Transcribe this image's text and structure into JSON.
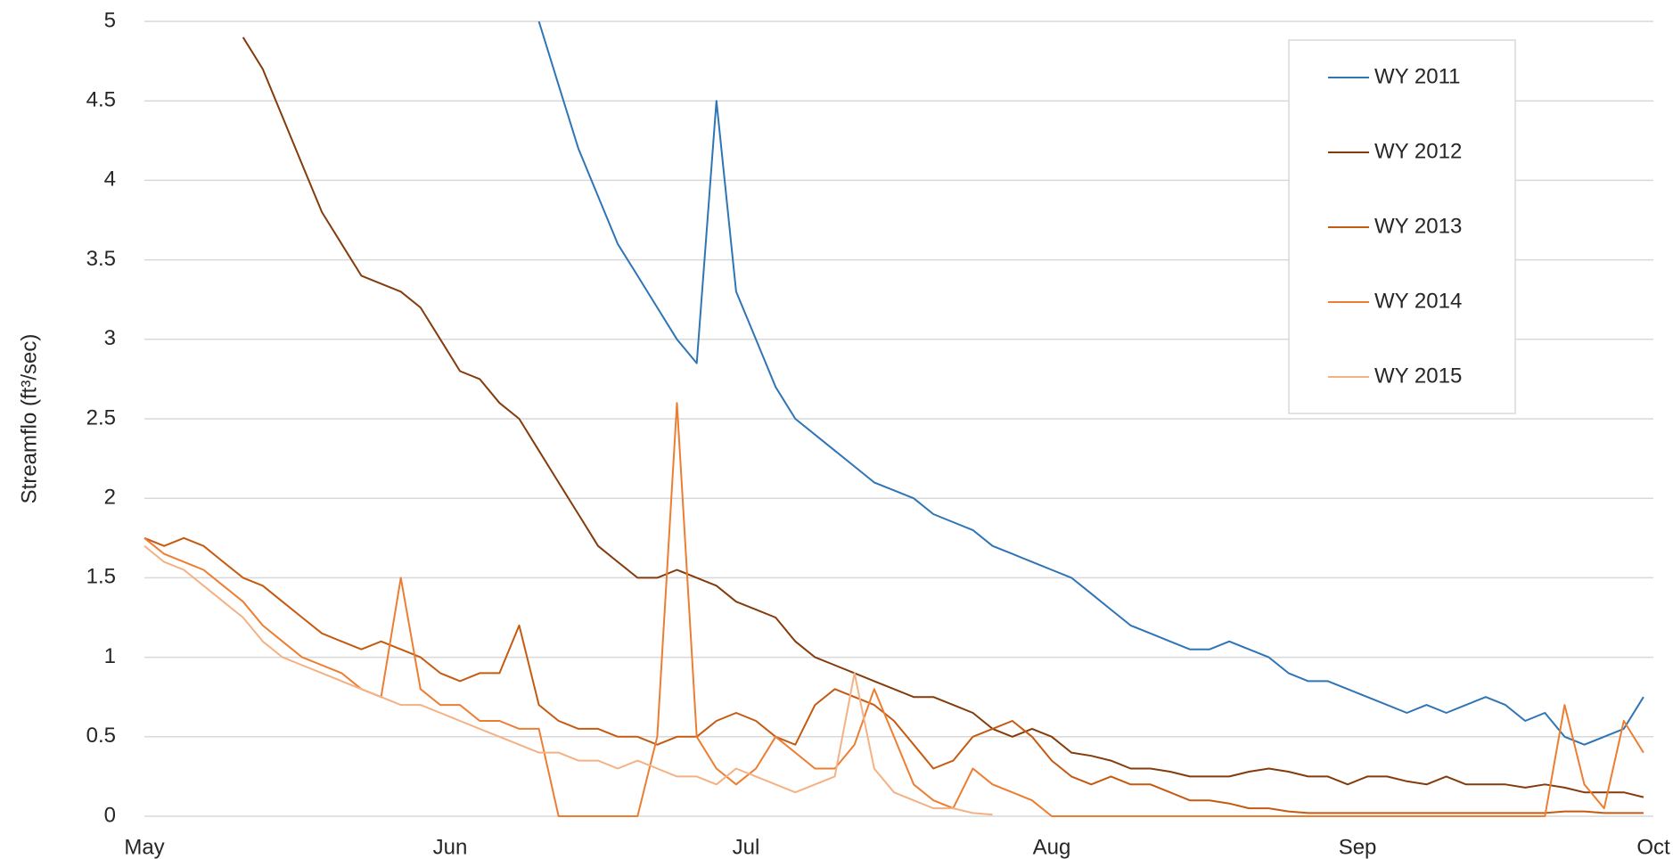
{
  "chart_data": {
    "type": "line",
    "y_label": "Streamflo (ft³/sec)",
    "x": [
      0,
      2,
      4,
      6,
      8,
      10,
      12,
      14,
      16,
      18,
      20,
      22,
      24,
      26,
      28,
      30,
      32,
      34,
      36,
      38,
      40,
      42,
      44,
      46,
      48,
      50,
      52,
      54,
      56,
      58,
      60,
      62,
      64,
      66,
      68,
      70,
      72,
      74,
      76,
      78,
      80,
      82,
      84,
      86,
      88,
      90,
      92,
      94,
      96,
      98,
      100,
      102,
      104,
      106,
      108,
      110,
      112,
      114,
      116,
      118,
      120,
      122,
      124,
      126,
      128,
      130,
      132,
      134,
      136,
      138,
      140,
      142,
      144,
      146,
      148,
      150,
      152
    ],
    "xlim": [
      0,
      153
    ],
    "xticks": [
      {
        "value": 0,
        "label": "May"
      },
      {
        "value": 31,
        "label": "Jun"
      },
      {
        "value": 61,
        "label": "Jul"
      },
      {
        "value": 92,
        "label": "Aug"
      },
      {
        "value": 123,
        "label": "Sep"
      },
      {
        "value": 153,
        "label": "Oct"
      }
    ],
    "ylim": [
      0,
      5
    ],
    "yticks": [
      0,
      0.5,
      1,
      1.5,
      2,
      2.5,
      3,
      3.5,
      4,
      4.5,
      5
    ],
    "grid": true,
    "legend": "top-right",
    "series": [
      {
        "name": "WY 2011",
        "color": "#2e75b6",
        "values": [
          null,
          null,
          null,
          null,
          null,
          null,
          null,
          null,
          null,
          null,
          null,
          null,
          null,
          null,
          null,
          null,
          null,
          null,
          null,
          null,
          5.0,
          4.6,
          4.2,
          3.9,
          3.6,
          3.4,
          3.2,
          3.0,
          2.85,
          4.5,
          3.3,
          3.0,
          2.7,
          2.5,
          2.4,
          2.3,
          2.2,
          2.1,
          2.05,
          2.0,
          1.9,
          1.85,
          1.8,
          1.7,
          1.65,
          1.6,
          1.55,
          1.5,
          1.4,
          1.3,
          1.2,
          1.15,
          1.1,
          1.05,
          1.05,
          1.1,
          1.05,
          1.0,
          0.9,
          0.85,
          0.85,
          0.8,
          0.75,
          0.7,
          0.65,
          0.7,
          0.65,
          0.7,
          0.75,
          0.7,
          0.6,
          0.65,
          0.5,
          0.45,
          0.5,
          0.55,
          0.75
        ]
      },
      {
        "name": "WY 2012",
        "color": "#843c0c",
        "values": [
          null,
          null,
          null,
          null,
          null,
          4.9,
          4.7,
          4.4,
          4.1,
          3.8,
          3.6,
          3.4,
          3.35,
          3.3,
          3.2,
          3.0,
          2.8,
          2.75,
          2.6,
          2.5,
          2.3,
          2.1,
          1.9,
          1.7,
          1.6,
          1.5,
          1.5,
          1.55,
          1.5,
          1.45,
          1.35,
          1.3,
          1.25,
          1.1,
          1.0,
          0.95,
          0.9,
          0.85,
          0.8,
          0.75,
          0.75,
          0.7,
          0.65,
          0.55,
          0.5,
          0.55,
          0.5,
          0.4,
          0.38,
          0.35,
          0.3,
          0.3,
          0.28,
          0.25,
          0.25,
          0.25,
          0.28,
          0.3,
          0.28,
          0.25,
          0.25,
          0.2,
          0.25,
          0.25,
          0.22,
          0.2,
          0.25,
          0.2,
          0.2,
          0.2,
          0.18,
          0.2,
          0.18,
          0.15,
          0.15,
          0.15,
          0.12
        ]
      },
      {
        "name": "WY 2013",
        "color": "#c55a11",
        "values": [
          1.75,
          1.7,
          1.75,
          1.7,
          1.6,
          1.5,
          1.45,
          1.35,
          1.25,
          1.15,
          1.1,
          1.05,
          1.1,
          1.05,
          1.0,
          0.9,
          0.85,
          0.9,
          0.9,
          1.2,
          0.7,
          0.6,
          0.55,
          0.55,
          0.5,
          0.5,
          0.45,
          0.5,
          0.5,
          0.6,
          0.65,
          0.6,
          0.5,
          0.45,
          0.7,
          0.8,
          0.75,
          0.7,
          0.6,
          0.45,
          0.3,
          0.35,
          0.5,
          0.55,
          0.6,
          0.5,
          0.35,
          0.25,
          0.2,
          0.25,
          0.2,
          0.2,
          0.15,
          0.1,
          0.1,
          0.08,
          0.05,
          0.05,
          0.03,
          0.02,
          0.02,
          0.02,
          0.02,
          0.02,
          0.02,
          0.02,
          0.02,
          0.02,
          0.02,
          0.02,
          0.02,
          0.02,
          0.03,
          0.03,
          0.02,
          0.02,
          0.02
        ]
      },
      {
        "name": "WY 2014",
        "color": "#ed7d31",
        "values": [
          1.75,
          1.65,
          1.6,
          1.55,
          1.45,
          1.35,
          1.2,
          1.1,
          1.0,
          0.95,
          0.9,
          0.8,
          0.75,
          1.5,
          0.8,
          0.7,
          0.7,
          0.6,
          0.6,
          0.55,
          0.55,
          0,
          0,
          0,
          0,
          0,
          0.5,
          2.6,
          0.5,
          0.3,
          0.2,
          0.3,
          0.5,
          0.4,
          0.3,
          0.3,
          0.45,
          0.8,
          0.5,
          0.2,
          0.1,
          0.05,
          0.3,
          0.2,
          0.15,
          0.1,
          0,
          0,
          0,
          0,
          0,
          0,
          0,
          0,
          0,
          0,
          0,
          0,
          0,
          0,
          0,
          0,
          0,
          0,
          0,
          0,
          0,
          0,
          0,
          0,
          0,
          0,
          0.7,
          0.2,
          0.05,
          0.6,
          0.4
        ]
      },
      {
        "name": "WY 2015",
        "color": "#f4b183",
        "values": [
          1.7,
          1.6,
          1.55,
          1.45,
          1.35,
          1.25,
          1.1,
          1.0,
          0.95,
          0.9,
          0.85,
          0.8,
          0.75,
          0.7,
          0.7,
          0.65,
          0.6,
          0.55,
          0.5,
          0.45,
          0.4,
          0.4,
          0.35,
          0.35,
          0.3,
          0.35,
          0.3,
          0.25,
          0.25,
          0.2,
          0.3,
          0.25,
          0.2,
          0.15,
          0.2,
          0.25,
          0.9,
          0.3,
          0.15,
          0.1,
          0.05,
          0.05,
          0.02,
          0.01,
          null,
          null,
          null,
          null,
          null,
          null,
          null,
          null,
          null,
          null,
          null,
          null,
          null,
          null,
          null,
          null,
          null,
          null,
          null,
          null,
          null,
          null,
          null,
          null,
          null,
          null,
          null,
          null,
          null,
          null,
          null,
          null,
          null
        ]
      }
    ]
  }
}
